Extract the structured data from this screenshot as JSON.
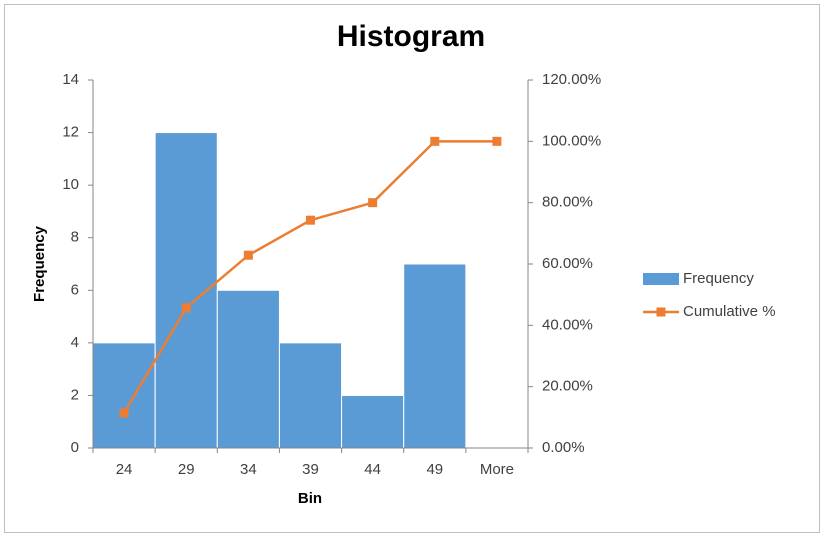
{
  "chart_data": {
    "type": "bar",
    "title": "Histogram",
    "x_label": "Bin",
    "y_label": "Frequency",
    "categories": [
      "24",
      "29",
      "34",
      "39",
      "44",
      "49",
      "More"
    ],
    "series": [
      {
        "name": "Frequency",
        "type": "bar",
        "color": "#5b9bd5",
        "values": [
          4,
          12,
          6,
          4,
          2,
          7,
          0
        ]
      },
      {
        "name": "Cumulative %",
        "type": "line",
        "axis": "y2",
        "color": "#ed7d31",
        "values": [
          11.43,
          45.71,
          62.86,
          74.29,
          80,
          100,
          100
        ]
      }
    ],
    "ylim": [
      0,
      14
    ],
    "yticks": [
      0,
      2,
      4,
      6,
      8,
      10,
      12,
      14
    ],
    "y2lim": [
      0,
      120
    ],
    "y2ticks": [
      {
        "value": 0,
        "label": "0.00%"
      },
      {
        "value": 20,
        "label": "20.00%"
      },
      {
        "value": 40,
        "label": "40.00%"
      },
      {
        "value": 60,
        "label": "60.00%"
      },
      {
        "value": 80,
        "label": "80.00%"
      },
      {
        "value": 100,
        "label": "100.00%"
      },
      {
        "value": 120,
        "label": "120.00%"
      }
    ],
    "legend": "right",
    "grid": false
  }
}
